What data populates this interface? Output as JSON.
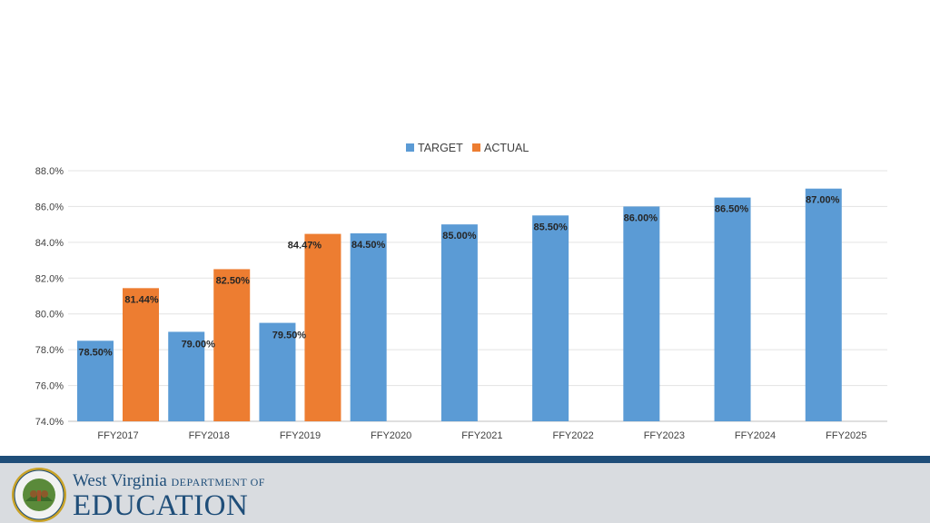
{
  "chart_data": {
    "type": "bar",
    "categories": [
      "FFY2017",
      "FFY2018",
      "FFY2019",
      "FFY2020",
      "FFY2021",
      "FFY2022",
      "FFY2023",
      "FFY2024",
      "FFY2025"
    ],
    "series": [
      {
        "name": "TARGET",
        "color": "#5b9bd5",
        "values": [
          78.5,
          79.0,
          79.5,
          84.5,
          85.0,
          85.5,
          86.0,
          86.5,
          87.0
        ],
        "labels": [
          "78.50%",
          "79.00%",
          "79.50%",
          "84.50%",
          "85.00%",
          "85.50%",
          "86.00%",
          "86.50%",
          "87.00%"
        ]
      },
      {
        "name": "ACTUAL",
        "color": "#ed7d31",
        "values": [
          81.44,
          82.5,
          84.47,
          null,
          null,
          null,
          null,
          null,
          null
        ],
        "labels": [
          "81.44%",
          "82.50%",
          "84.47%",
          null,
          null,
          null,
          null,
          null,
          null
        ]
      }
    ],
    "ylim": [
      74,
      88
    ],
    "yticks": [
      74,
      76,
      78,
      80,
      82,
      84,
      86,
      88
    ],
    "ytick_labels": [
      "74.0%",
      "76.0%",
      "78.0%",
      "80.0%",
      "82.0%",
      "84.0%",
      "86.0%",
      "88.0%"
    ],
    "grid": true,
    "legend_position": "top-center"
  },
  "footer": {
    "brand_top": "West Virginia",
    "brand_dept": "DEPARTMENT OF",
    "brand_bottom": "EDUCATION",
    "seal_text": "STATE OF WEST VIRGINIA"
  }
}
